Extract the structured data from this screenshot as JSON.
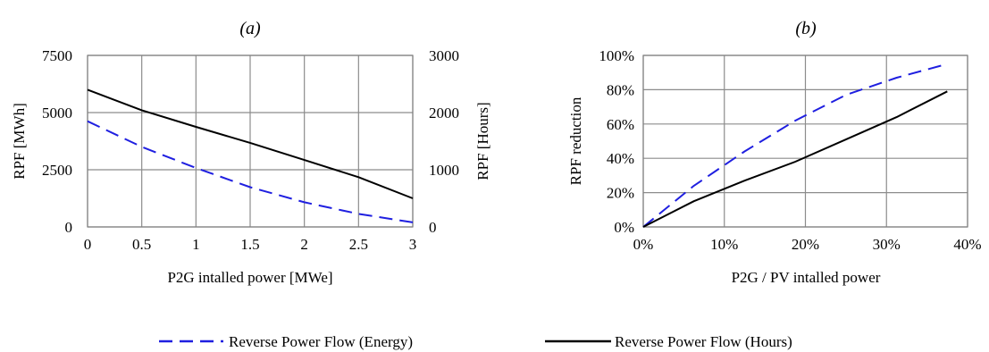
{
  "chart_data": [
    {
      "type": "line",
      "title": "(a)",
      "xlabel": "P2G intalled power [MWe]",
      "ylabel": "RPF [MWh]",
      "y2label": "RPF [Hours]",
      "xlim": [
        0,
        3
      ],
      "ylim": [
        0,
        7500
      ],
      "y2lim": [
        0,
        3000
      ],
      "x_ticks": [
        "0",
        "0.5",
        "1",
        "1.5",
        "2",
        "2.5",
        "3"
      ],
      "y_ticks": [
        "0",
        "2500",
        "5000",
        "7500"
      ],
      "y2_ticks": [
        "0",
        "1000",
        "2000",
        "3000"
      ],
      "grid": true,
      "x": [
        0,
        0.5,
        1,
        1.5,
        2,
        2.5,
        3
      ],
      "series": [
        {
          "name": "Reverse Power Flow (Energy)",
          "axis": "left",
          "color": "#1f1fe0",
          "dash": "dashed",
          "values": [
            4620,
            3500,
            2580,
            1740,
            1080,
            570,
            200
          ]
        },
        {
          "name": "Reverse Power Flow (Hours)",
          "axis": "right",
          "color": "#000000",
          "dash": "solid",
          "values": [
            2400,
            2040,
            1750,
            1470,
            1170,
            870,
            500
          ]
        }
      ]
    },
    {
      "type": "line",
      "title": "(b)",
      "xlabel": "P2G  / PV intalled power",
      "ylabel": "RPF reduction",
      "xlim": [
        0,
        40
      ],
      "ylim": [
        0,
        100
      ],
      "x_ticks": [
        "0%",
        "10%",
        "20%",
        "30%",
        "40%"
      ],
      "y_ticks": [
        "0%",
        "20%",
        "40%",
        "60%",
        "80%",
        "100%"
      ],
      "grid": true,
      "series": [
        {
          "name": "Reverse Power Flow (Energy)",
          "color": "#1f1fe0",
          "dash": "dashed",
          "x": [
            0,
            6.25,
            12.5,
            18.75,
            25,
            31.25,
            37.5
          ],
          "values": [
            0,
            24,
            44,
            62,
            77,
            87,
            95
          ]
        },
        {
          "name": "Reverse Power Flow (Hours)",
          "color": "#000000",
          "dash": "solid",
          "x": [
            0,
            6.25,
            12.5,
            18.75,
            25,
            31.25,
            37.5
          ],
          "values": [
            0,
            15,
            27,
            38,
            51,
            64,
            79
          ]
        }
      ]
    }
  ],
  "legend": {
    "items": [
      {
        "label": "Reverse Power Flow (Energy)",
        "color": "#1f1fe0",
        "dash": "dashed"
      },
      {
        "label": "Reverse Power Flow (Hours)",
        "color": "#000000",
        "dash": "solid"
      }
    ]
  }
}
